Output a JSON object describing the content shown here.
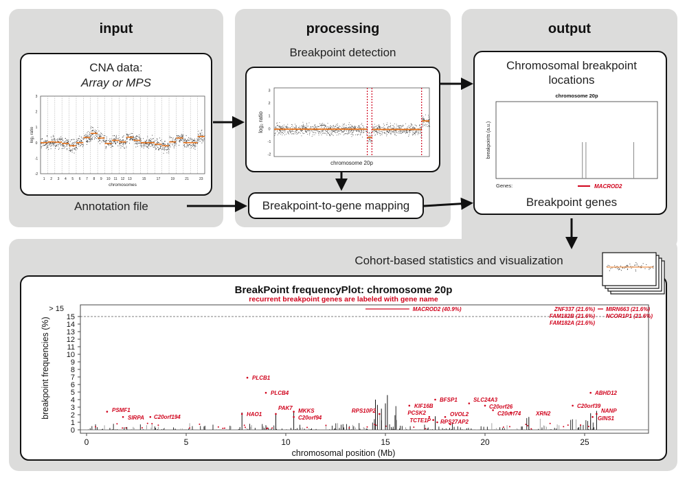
{
  "panels": {
    "input": {
      "title": "input",
      "cna_title": "CNA data:",
      "cna_subtitle": "Array or MPS",
      "annotation": "Annotation file"
    },
    "processing": {
      "title": "processing",
      "detection_title": "Breakpoint detection",
      "mapping_label": "Breakpoint-to-gene mapping"
    },
    "output": {
      "title": "output",
      "locations_title_1": "Chromosomal breakpoint",
      "locations_title_2": "locations",
      "genes_title": "Breakpoint genes"
    },
    "cohort": {
      "title": "Cohort-based statistics and visualization"
    }
  },
  "cna_plot": {
    "ylabel": "log₂ ratio",
    "xlabel": "chromosomes",
    "yticks": [
      "-2",
      "-1",
      "0",
      "1",
      "2",
      "3"
    ],
    "chromosomes": [
      "1",
      "2",
      "3",
      "4",
      "5",
      "6",
      "7",
      "8",
      "9",
      "10",
      "11",
      "12",
      "13",
      "",
      "15",
      "",
      "17",
      "",
      "19",
      "",
      "21",
      "",
      "23"
    ],
    "segment_means": [
      0,
      0.05,
      0.03,
      -0.05,
      -0.2,
      0,
      0.33,
      0.6,
      0.3,
      -0.05,
      0.15,
      0.05,
      0.35,
      0.15,
      0,
      0,
      -0.1,
      -0.2,
      0.05,
      0.3,
      0,
      0,
      0.4
    ]
  },
  "detection_plot": {
    "ylabel": "log₂ ratio",
    "xlabel": "chromosome 20p",
    "yticks": [
      "-2",
      "-1",
      "0",
      "1",
      "2",
      "3"
    ],
    "breakpoint_fractions": [
      0.6,
      0.63,
      0.95
    ],
    "segment_levels": [
      -0.05,
      -0.7,
      -0.07,
      0.6
    ]
  },
  "location_plot": {
    "title": "chromosome 20p",
    "ylabel": "breakpoints (a.u.)",
    "genes_label": "Genes:",
    "gene": "MACROD2",
    "breakpoint_fractions": [
      0.535,
      0.557,
      0.853
    ]
  },
  "chart_data": {
    "type": "bar",
    "title": "BreakPoint frequencyPlot: chromosome 20p",
    "subtitle": "recurrent breakpoint genes are labeled with gene name",
    "xlabel": "chromosomal position (Mb)",
    "ylabel": "breakpoint frequencies (%)",
    "xlim": [
      -1,
      27.5
    ],
    "ylim": [
      0,
      15
    ],
    "xticks": [
      "0",
      "5",
      "10",
      "15",
      "20",
      "25"
    ],
    "yticks": [
      "0",
      "1",
      "2",
      "3",
      "4",
      "5",
      "6",
      "7",
      "8",
      "9",
      "10",
      "11",
      "12",
      "13",
      "14",
      "15"
    ],
    "overflow_label": "> 15",
    "threshold_line": 15,
    "recurrent_genes": [
      {
        "gene": "MACROD2 (40.9%)",
        "start": 14.0,
        "end": 16.2,
        "pct": 40.9
      },
      {
        "gene": "ZNF337 (21.6%)",
        "start": 25.6,
        "end": 25.7,
        "pct": 21.6
      },
      {
        "gene": "MIRN663 (21.6%)",
        "start": 25.8,
        "end": 25.9,
        "pct": 21.6
      },
      {
        "gene": "FAM182B (21.6%)",
        "start": 25.6,
        "end": 25.7,
        "pct": 21.6
      },
      {
        "gene": "NCOR1P1 (21.6%)",
        "start": 25.8,
        "end": 25.9,
        "pct": 21.6
      },
      {
        "gene": "FAM182A (21.6%)",
        "start": 25.6,
        "end": 25.7,
        "pct": 21.6
      }
    ],
    "gene_points": [
      {
        "gene": "PSMF1",
        "mb": 1.03,
        "pct": 2.4
      },
      {
        "gene": "SIRPA",
        "mb": 1.83,
        "pct": 1.7
      },
      {
        "gene": "C20orf194",
        "mb": 3.2,
        "pct": 1.7
      },
      {
        "gene": "HAO1",
        "mb": 7.8,
        "pct": 2.1
      },
      {
        "gene": "PLCB1",
        "mb": 8.07,
        "pct": 6.9
      },
      {
        "gene": "PLCB4",
        "mb": 9.0,
        "pct": 4.9
      },
      {
        "gene": "PAK7",
        "mb": 9.5,
        "pct": 2.1
      },
      {
        "gene": "MKKS",
        "mb": 10.4,
        "pct": 2.4
      },
      {
        "gene": "C20orf94",
        "mb": 10.4,
        "pct": 1.7
      },
      {
        "gene": "RPS10P2",
        "mb": 14.7,
        "pct": 2.1
      },
      {
        "gene": "KIF16B",
        "mb": 16.2,
        "pct": 3.2
      },
      {
        "gene": "BFSP1",
        "mb": 17.5,
        "pct": 4.0
      },
      {
        "gene": "PCSK2",
        "mb": 17.2,
        "pct": 1.7
      },
      {
        "gene": "TCTE1P",
        "mb": 17.4,
        "pct": 1.3
      },
      {
        "gene": "OVOL2",
        "mb": 18.0,
        "pct": 1.7
      },
      {
        "gene": "RPS27AP2",
        "mb": 17.6,
        "pct": 1.0
      },
      {
        "gene": "SLC24A3",
        "mb": 19.2,
        "pct": 3.5
      },
      {
        "gene": "C20orf26",
        "mb": 20.0,
        "pct": 3.2
      },
      {
        "gene": "C20orf74",
        "mb": 20.4,
        "pct": 2.6
      },
      {
        "gene": "XRN2",
        "mb": 21.3,
        "pct": 2.3
      },
      {
        "gene": "C20orf39",
        "mb": 24.4,
        "pct": 3.2
      },
      {
        "gene": "ABHD12",
        "mb": 25.3,
        "pct": 4.9
      },
      {
        "gene": "NANP",
        "mb": 25.6,
        "pct": 2.1
      },
      {
        "gene": "GINS1",
        "mb": 25.4,
        "pct": 1.7
      }
    ],
    "peak_bars": [
      {
        "mb": 7.8,
        "pct": 2.3
      },
      {
        "mb": 9.5,
        "pct": 2.2
      },
      {
        "mb": 10.4,
        "pct": 2.4
      },
      {
        "mb": 14.5,
        "pct": 4.0
      },
      {
        "mb": 14.6,
        "pct": 3.3
      },
      {
        "mb": 15.1,
        "pct": 4.6
      },
      {
        "mb": 15.0,
        "pct": 3.5
      },
      {
        "mb": 14.8,
        "pct": 2.8
      },
      {
        "mb": 17.5,
        "pct": 1.8
      },
      {
        "mb": 22.2,
        "pct": 1.7
      },
      {
        "mb": 25.3,
        "pct": 2.2
      },
      {
        "mb": 25.6,
        "pct": 2.5
      }
    ],
    "colors": {
      "bars": "#111111",
      "genes": "#d0021b",
      "segments": "#e8731a"
    }
  }
}
